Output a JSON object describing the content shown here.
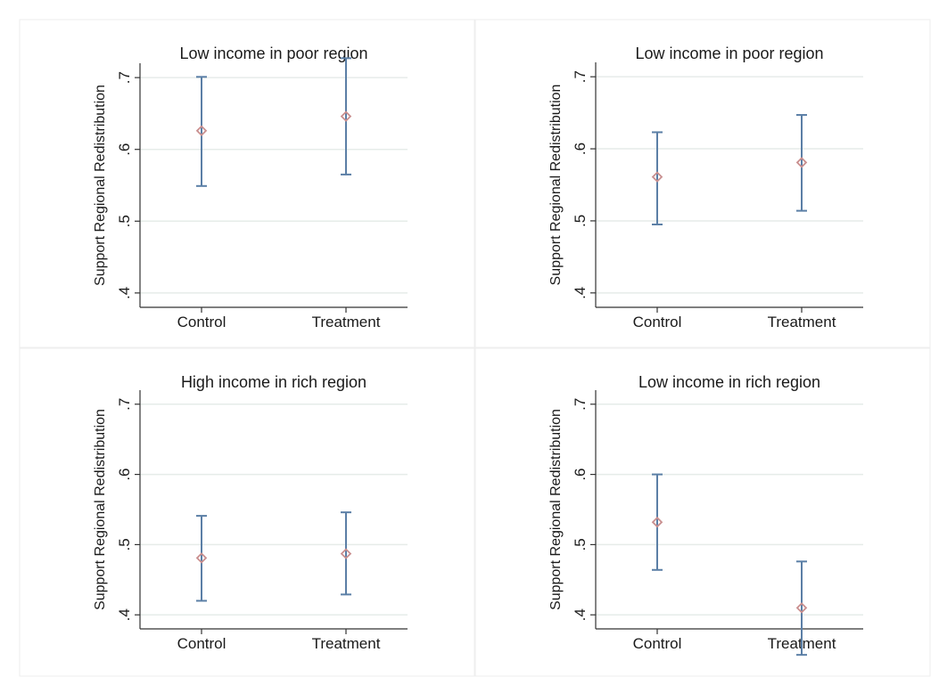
{
  "chart_data": [
    {
      "type": "scatter",
      "title": "Low income in poor region",
      "ylabel": "Support Regional Redistribution",
      "categories": [
        "Control",
        "Treatment"
      ],
      "ylim": [
        0.4,
        0.7
      ],
      "yticks": [
        ".4",
        ".5",
        ".6",
        ".7"
      ],
      "ytick_values": [
        0.4,
        0.5,
        0.6,
        0.7
      ],
      "grid": true,
      "series": [
        {
          "values": [
            0.626,
            0.646
          ],
          "lower": [
            0.549,
            0.565
          ],
          "upper": [
            0.701,
            0.727
          ]
        }
      ]
    },
    {
      "type": "scatter",
      "title": "Low income in poor region",
      "ylabel": "Support Regional Redistribution",
      "categories": [
        "Control",
        "Treatment"
      ],
      "ylim": [
        0.4,
        0.7
      ],
      "yticks": [
        ".4",
        ".5",
        ".6",
        ".7"
      ],
      "ytick_values": [
        0.4,
        0.5,
        0.6,
        0.7
      ],
      "grid": true,
      "series": [
        {
          "values": [
            0.561,
            0.581
          ],
          "lower": [
            0.495,
            0.514
          ],
          "upper": [
            0.623,
            0.647
          ]
        }
      ]
    },
    {
      "type": "scatter",
      "title": "High income in rich region",
      "ylabel": "Support Regional Redistribution",
      "categories": [
        "Control",
        "Treatment"
      ],
      "ylim": [
        0.4,
        0.7
      ],
      "yticks": [
        ".4",
        ".5",
        ".6",
        ".7"
      ],
      "ytick_values": [
        0.4,
        0.5,
        0.6,
        0.7
      ],
      "grid": true,
      "series": [
        {
          "values": [
            0.481,
            0.487
          ],
          "lower": [
            0.42,
            0.429
          ],
          "upper": [
            0.541,
            0.546
          ]
        }
      ]
    },
    {
      "type": "scatter",
      "title": "Low income in rich region",
      "ylabel": "Support Regional Redistribution",
      "categories": [
        "Control",
        "Treatment"
      ],
      "ylim": [
        0.4,
        0.7
      ],
      "yticks": [
        ".4",
        ".5",
        ".6",
        ".7"
      ],
      "ytick_values": [
        0.4,
        0.5,
        0.6,
        0.7
      ],
      "grid": true,
      "series": [
        {
          "values": [
            0.532,
            0.41
          ],
          "lower": [
            0.464,
            0.343
          ],
          "upper": [
            0.6,
            0.476
          ]
        }
      ]
    }
  ],
  "colors": {
    "point": "#c98f8f",
    "errorbar": "#5b7fa6",
    "grid": "#e6ece9",
    "axis": "#333333",
    "panel_border": "#eeeeee"
  }
}
